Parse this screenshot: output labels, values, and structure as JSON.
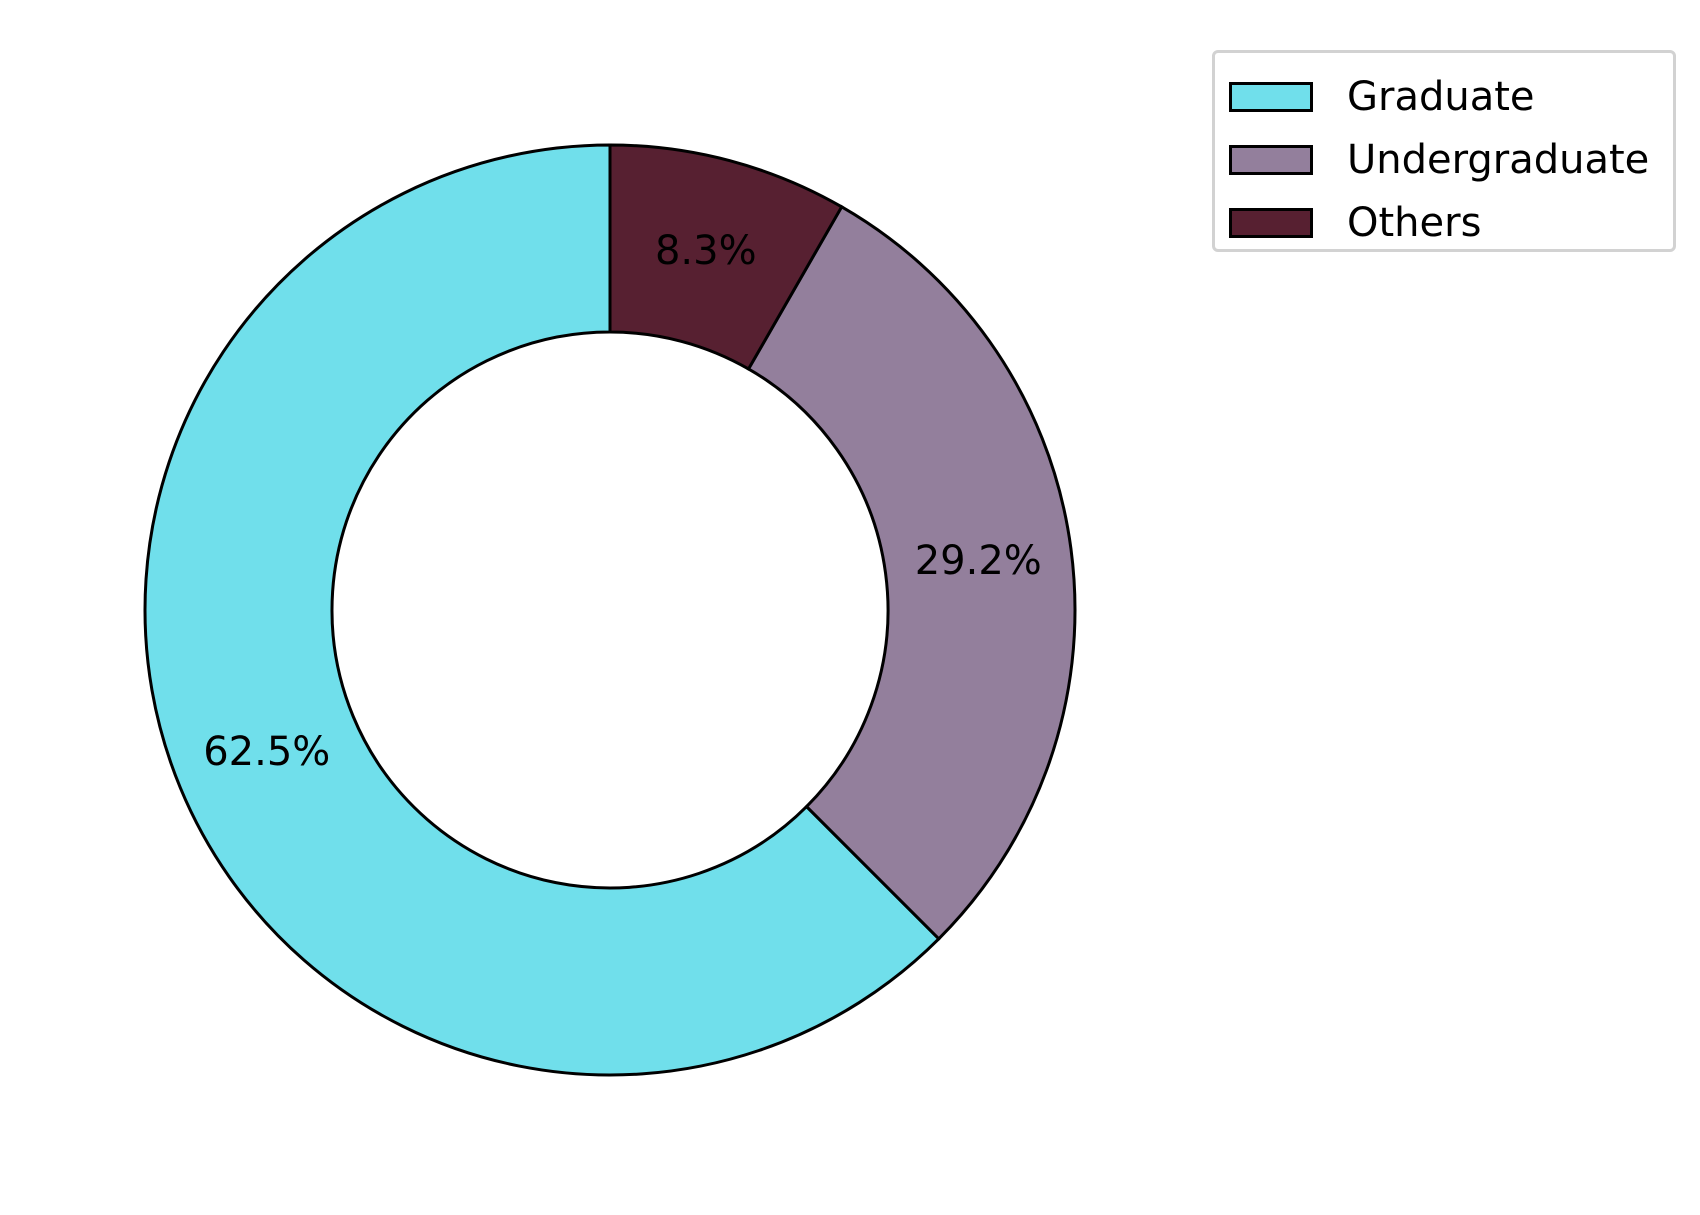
{
  "chart_data": {
    "type": "pie",
    "donut": true,
    "categories": [
      "Graduate",
      "Undergraduate",
      "Others"
    ],
    "values": [
      62.5,
      29.2,
      8.3
    ],
    "value_labels": [
      "62.5%",
      "29.2%",
      "8.3%"
    ],
    "colors": [
      "#70dfeb",
      "#937f9c",
      "#572031"
    ],
    "edge_color": "#000000",
    "start": "top",
    "direction": "counterclockwise",
    "title": "",
    "legend": {
      "placement": "top-right",
      "entries": [
        "Graduate",
        "Undergraduate",
        "Others"
      ]
    }
  }
}
